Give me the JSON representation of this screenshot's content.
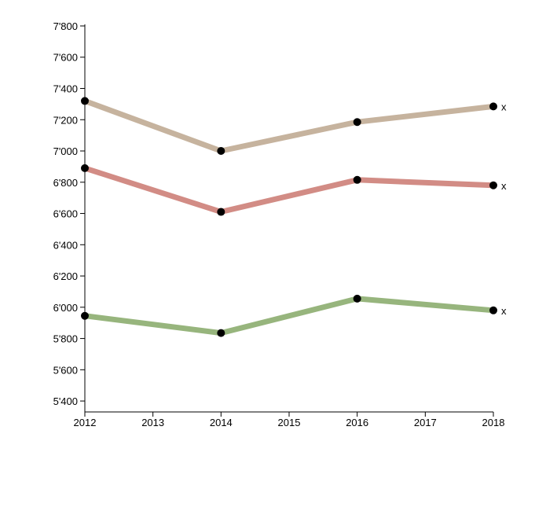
{
  "chart_data": {
    "type": "line",
    "x": [
      2012,
      2014,
      2016,
      2018
    ],
    "x_ticks": [
      "2012",
      "2013",
      "2014",
      "2015",
      "2016",
      "2017",
      "2018"
    ],
    "xlim": [
      2012,
      2018
    ],
    "y_ticks": [
      "5'400",
      "5'600",
      "5'800",
      "6'000",
      "6'200",
      "6'400",
      "6'600",
      "6'800",
      "7'000",
      "7'200",
      "7'400",
      "7'600",
      "7'800"
    ],
    "ylim": [
      5330,
      7810
    ],
    "series": [
      {
        "values": [
          7320,
          7000,
          7185,
          7285
        ],
        "color": "#c6b39e",
        "end_label": "x"
      },
      {
        "values": [
          6890,
          6610,
          6815,
          6780
        ],
        "color": "#d28c85",
        "end_label": "x"
      },
      {
        "values": [
          5945,
          5835,
          6055,
          5980
        ],
        "color": "#97b57d",
        "end_label": "x"
      }
    ],
    "grid": false,
    "legend": "none"
  }
}
